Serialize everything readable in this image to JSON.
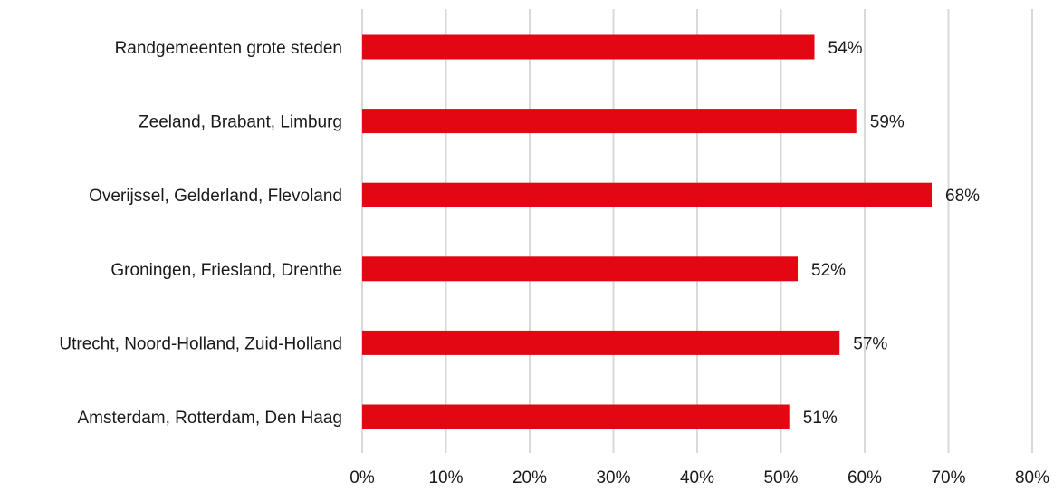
{
  "chart_data": {
    "type": "bar",
    "orientation": "horizontal",
    "categories": [
      "Randgemeenten grote steden",
      "Zeeland, Brabant, Limburg",
      "Overijssel, Gelderland, Flevoland",
      "Groningen, Friesland, Drenthe",
      "Utrecht, Noord-Holland, Zuid-Holland",
      "Amsterdam, Rotterdam, Den Haag"
    ],
    "values": [
      54,
      59,
      68,
      52,
      57,
      51
    ],
    "data_labels": [
      "54%",
      "59%",
      "68%",
      "52%",
      "57%",
      "51%"
    ],
    "xlim": [
      0,
      80
    ],
    "xticks": [
      0,
      10,
      20,
      30,
      40,
      50,
      60,
      70,
      80
    ],
    "xtick_labels": [
      "0%",
      "10%",
      "20%",
      "30%",
      "40%",
      "50%",
      "60%",
      "70%",
      "80%"
    ],
    "grid": true,
    "legend": "none",
    "bar_color": "#e30613",
    "grid_color": "#d9d9d9",
    "text_color": "#1a1a1a"
  }
}
